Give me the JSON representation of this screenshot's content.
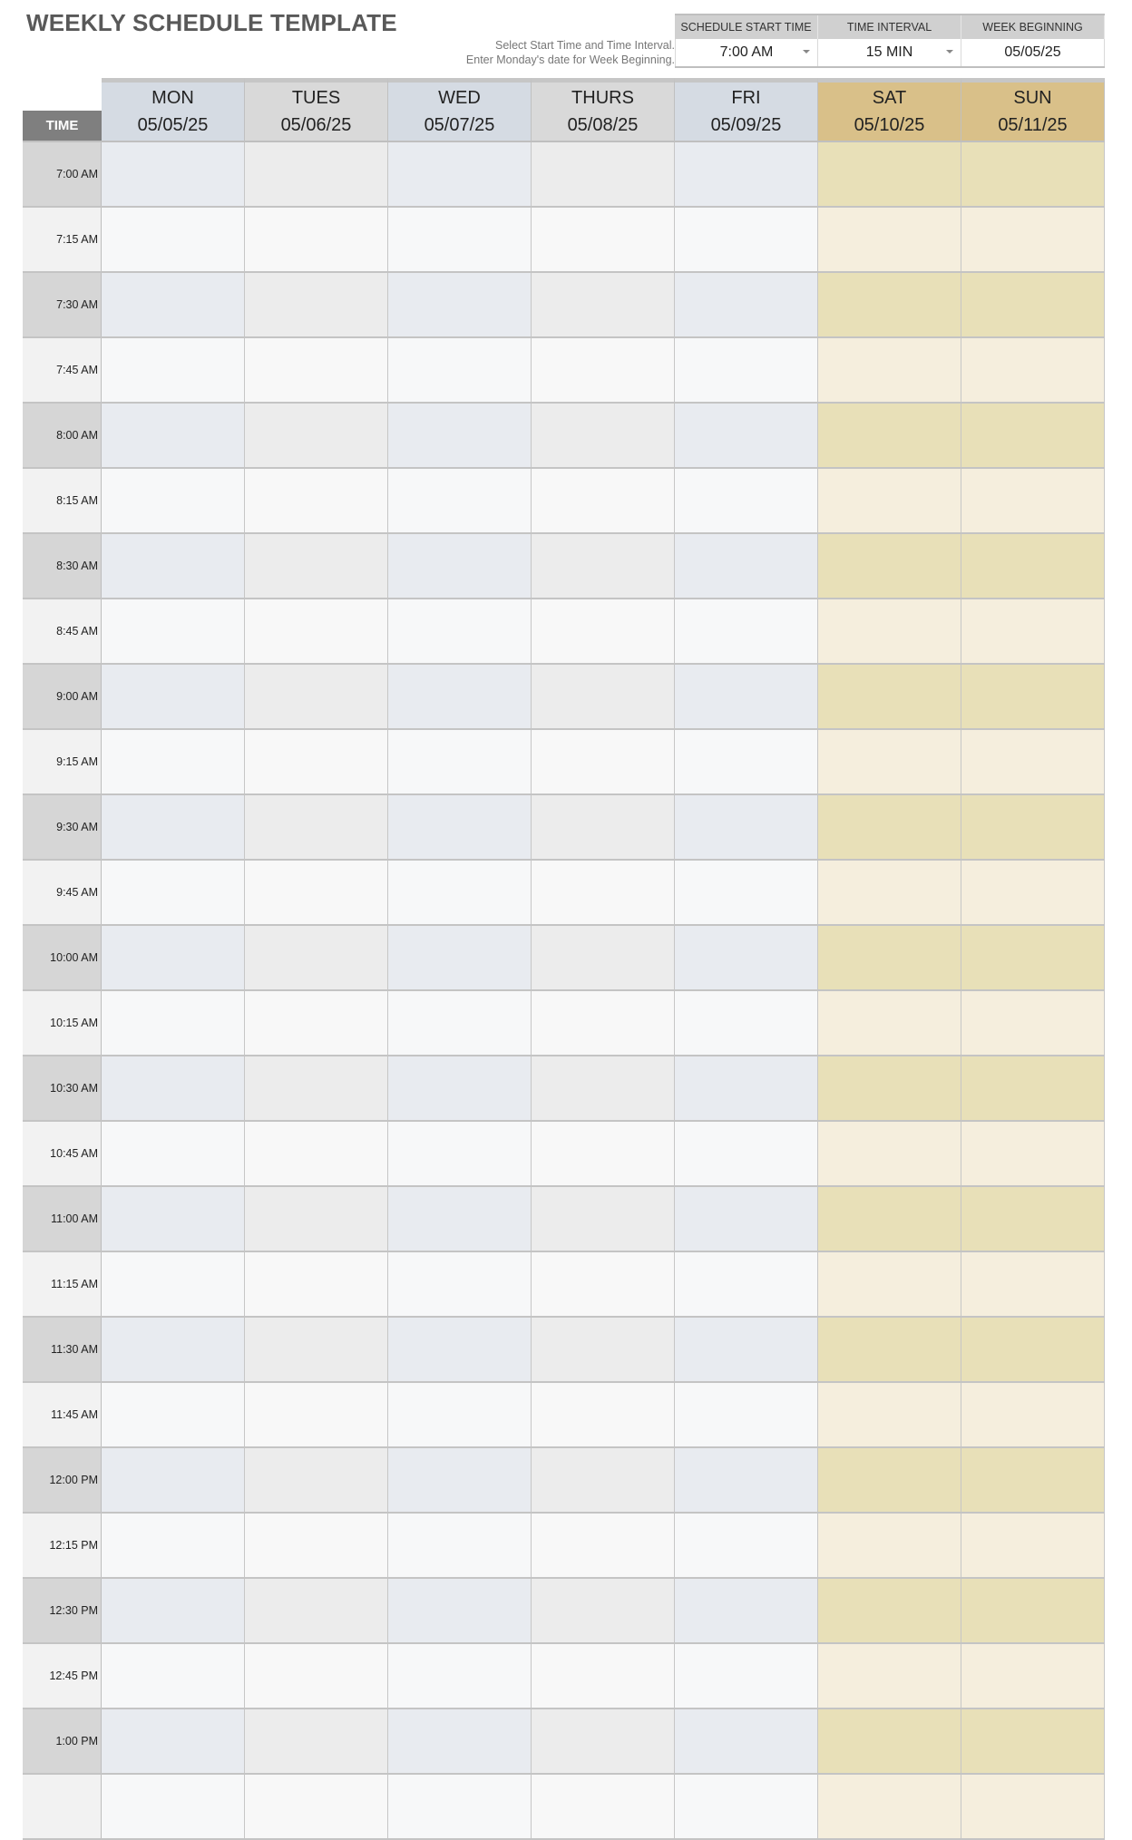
{
  "title": "WEEKLY SCHEDULE TEMPLATE",
  "instructions": [
    "Select Start Time and Time Interval.",
    "Enter Monday's date for Week Beginning."
  ],
  "controls": {
    "start_time": {
      "label": "SCHEDULE START TIME",
      "value": "7:00 AM"
    },
    "interval": {
      "label": "TIME INTERVAL",
      "value": "15 MIN"
    },
    "week_beginning": {
      "label": "WEEK BEGINNING",
      "value": "05/05/25"
    }
  },
  "time_header": "TIME",
  "days": [
    {
      "name": "MON",
      "date": "05/05/25"
    },
    {
      "name": "TUES",
      "date": "05/06/25"
    },
    {
      "name": "WED",
      "date": "05/07/25"
    },
    {
      "name": "THURS",
      "date": "05/08/25"
    },
    {
      "name": "FRI",
      "date": "05/09/25"
    },
    {
      "name": "SAT",
      "date": "05/10/25"
    },
    {
      "name": "SUN",
      "date": "05/11/25"
    }
  ],
  "times": [
    "7:00 AM",
    "7:15 AM",
    "7:30 AM",
    "7:45 AM",
    "8:00 AM",
    "8:15 AM",
    "8:30 AM",
    "8:45 AM",
    "9:00 AM",
    "9:15 AM",
    "9:30 AM",
    "9:45 AM",
    "10:00 AM",
    "10:15 AM",
    "10:30 AM",
    "10:45 AM",
    "11:00 AM",
    "11:15 AM",
    "11:30 AM",
    "11:45 AM",
    "12:00 PM",
    "12:15 PM",
    "12:30 PM",
    "12:45 PM",
    "1:00 PM",
    ""
  ],
  "colors": {
    "header_weekday_a": "#d5dbe3",
    "header_weekday_b": "#d9d9d9",
    "header_weekend": "#d9c089",
    "time_header": "#7f7f7f",
    "odd_time": "#d6d6d6",
    "odd_weekday_a": "#e8ebf0",
    "odd_weekday_b": "#ececec",
    "odd_weekend": "#e8e0b8",
    "even_time": "#f2f2f2",
    "even_weekday_a": "#f7f8f9",
    "even_weekday_b": "#f8f8f8",
    "even_weekend": "#f5eedd"
  }
}
